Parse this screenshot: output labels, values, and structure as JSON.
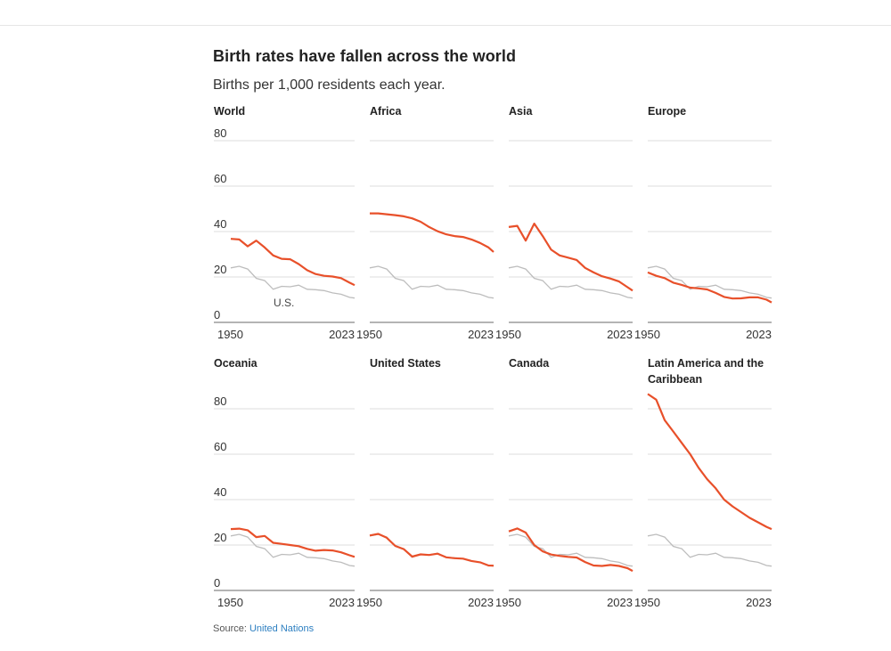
{
  "title": "Birth rates have fallen across the world",
  "subtitle": "Births per 1,000 residents each year.",
  "source": {
    "label": "Source: ",
    "link_text": "United Nations"
  },
  "colors": {
    "region": "#e8502a",
    "us": "#bdbdbd",
    "grid": "#dcdcdc",
    "axis": "#888888"
  },
  "chart_data": {
    "type": "line",
    "ylim": [
      0,
      80
    ],
    "yticks": [
      "0",
      "20",
      "40",
      "60",
      "80"
    ],
    "xticks": [
      "1950",
      "2023"
    ],
    "comparison_label": "U.S.",
    "years": [
      1950,
      1955,
      1960,
      1965,
      1970,
      1975,
      1980,
      1985,
      1990,
      1995,
      2000,
      2005,
      2010,
      2015,
      2020,
      2023
    ],
    "us_series": [
      24,
      24.7,
      23.5,
      19.4,
      18.4,
      14.6,
      15.9,
      15.7,
      16.4,
      14.6,
      14.4,
      14.0,
      13.0,
      12.4,
      11.0,
      10.7
    ],
    "panels": [
      {
        "name": "World",
        "values": [
          36.8,
          36.5,
          33.5,
          36.0,
          33.0,
          29.5,
          28.0,
          27.8,
          25.7,
          23.0,
          21.3,
          20.5,
          20.2,
          19.5,
          17.5,
          16.4
        ]
      },
      {
        "name": "Africa",
        "values": [
          48.0,
          48.0,
          47.6,
          47.2,
          46.7,
          45.8,
          44.3,
          42.0,
          40.1,
          38.8,
          38.0,
          37.6,
          36.5,
          35.0,
          33.0,
          31.0
        ]
      },
      {
        "name": "Asia",
        "values": [
          42.0,
          42.5,
          36.0,
          43.5,
          38.0,
          32.0,
          29.5,
          28.5,
          27.5,
          24.0,
          22.0,
          20.3,
          19.3,
          18.0,
          15.5,
          14.0
        ]
      },
      {
        "name": "Europe",
        "values": [
          22.0,
          20.5,
          19.5,
          17.5,
          16.5,
          15.3,
          15.0,
          14.5,
          13.0,
          11.2,
          10.5,
          10.6,
          11.0,
          11.0,
          10.0,
          8.8
        ]
      },
      {
        "name": "Oceania",
        "values": [
          27.0,
          27.2,
          26.5,
          23.5,
          24.0,
          21.0,
          20.5,
          20.0,
          19.5,
          18.3,
          17.5,
          17.8,
          17.6,
          16.8,
          15.5,
          14.8
        ]
      },
      {
        "name": "United States",
        "values": [
          24.2,
          24.9,
          23.2,
          19.6,
          18.2,
          14.9,
          15.9,
          15.6,
          16.2,
          14.6,
          14.2,
          14.0,
          13.0,
          12.4,
          11.0,
          10.9
        ]
      },
      {
        "name": "Canada",
        "values": [
          26.0,
          27.3,
          25.5,
          20.0,
          17.2,
          15.8,
          15.2,
          14.8,
          14.5,
          12.5,
          11.0,
          10.8,
          11.2,
          10.8,
          9.8,
          8.6
        ]
      },
      {
        "name": "Latin America and the Caribbean",
        "values": [
          86.5,
          84.0,
          75.0,
          70.0,
          65.0,
          60.0,
          54.0,
          49.0,
          45.0,
          40.0,
          37.0,
          34.5,
          32.0,
          30.0,
          28.0,
          27.0
        ]
      }
    ]
  }
}
